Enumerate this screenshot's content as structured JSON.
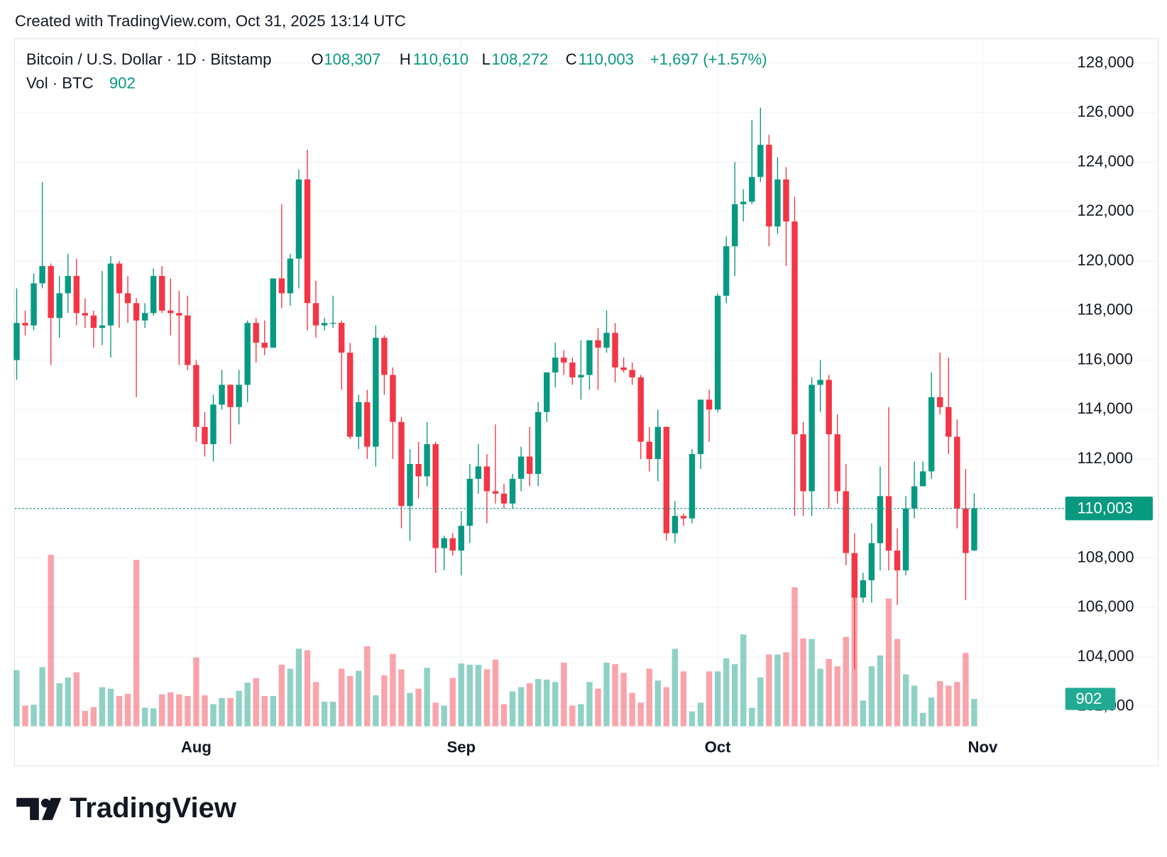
{
  "header": "Created with TradingView.com, Oct 31, 2025 13:14 UTC",
  "footer_logo": "TradingView",
  "chart_data": {
    "type": "candlestick",
    "title": "Bitcoin / U.S. Dollar · 1D · Bitstamp",
    "ohlc_legend": [
      {
        "key": "O",
        "text": "108,307"
      },
      {
        "key": "H",
        "text": "110,610"
      },
      {
        "key": "L",
        "text": "108,272"
      },
      {
        "key": "C",
        "text": "110,003"
      }
    ],
    "change": "+1,697 (+1.57%)",
    "volume_title": "Vol · BTC",
    "up_color": "#089981",
    "down_color": "#f23645",
    "grid": true,
    "xlim": [
      -0.2,
      122.3
    ],
    "xticks": [
      {
        "value": 21,
        "label": "Aug"
      },
      {
        "value": 52,
        "label": "Sep"
      },
      {
        "value": 82,
        "label": "Oct"
      },
      {
        "value": 113,
        "label": "Nov"
      }
    ],
    "ylim": [
      101200,
      129000
    ],
    "yticks": [
      {
        "value": 102000,
        "label": "102,000"
      },
      {
        "value": 104000,
        "label": "104,000"
      },
      {
        "value": 106000,
        "label": "106,000"
      },
      {
        "value": 108000,
        "label": "108,000"
      },
      {
        "value": 110000,
        "label": "110,000"
      },
      {
        "value": 112000,
        "label": "112,000"
      },
      {
        "value": 114000,
        "label": "114,000"
      },
      {
        "value": 116000,
        "label": "116,000"
      },
      {
        "value": 118000,
        "label": "118,000"
      },
      {
        "value": 120000,
        "label": "120,000"
      },
      {
        "value": 122000,
        "label": "122,000"
      },
      {
        "value": 124000,
        "label": "124,000"
      },
      {
        "value": 126000,
        "label": "126,000"
      },
      {
        "value": 128000,
        "label": "128,000"
      }
    ],
    "volume_ylim": [
      0,
      6000
    ],
    "last_price": {
      "value": 110003,
      "label": "110,003"
    },
    "open": [
      116000,
      117500,
      117400,
      119100,
      119800,
      117700,
      118700,
      119400,
      117900,
      117800,
      117300,
      117400,
      119900,
      118700,
      118300,
      117600,
      117900,
      119400,
      118000,
      117900,
      117800,
      115800,
      113300,
      112600,
      114200,
      115000,
      114100,
      115000,
      117500,
      116700,
      116500,
      119300,
      118700,
      120100,
      123300,
      118300,
      117400,
      117500,
      117500,
      116300,
      112900,
      114300,
      112500,
      116900,
      115400,
      113500,
      110100,
      111800,
      111300,
      112600,
      108400,
      108800,
      108300,
      109300,
      111200,
      111700,
      110700,
      110600,
      110200,
      111200,
      112100,
      111400,
      113900,
      115500,
      116100,
      115900,
      115300,
      115400,
      116800,
      116500,
      117100,
      115700,
      115600,
      115300,
      112700,
      112000,
      113300,
      109000,
      109700,
      109600,
      112200,
      114400,
      114000,
      118600,
      120600,
      122300,
      122400,
      123400,
      124700,
      121400,
      123300,
      121600,
      113000,
      110700,
      115000,
      115200,
      113000,
      110700,
      108200,
      106400,
      107100,
      108600,
      110500,
      108300,
      107500,
      110000,
      110900,
      111500,
      114500,
      114100,
      112900,
      110000,
      108307
    ],
    "high": [
      118900,
      118000,
      119500,
      123200,
      119900,
      119400,
      120300,
      120100,
      118500,
      118000,
      119600,
      120200,
      120000,
      119400,
      118500,
      118300,
      119700,
      119800,
      119300,
      118800,
      118600,
      116000,
      113900,
      114600,
      115600,
      115000,
      115600,
      117600,
      117700,
      117600,
      119300,
      122300,
      120300,
      123700,
      124500,
      119200,
      117700,
      118600,
      117600,
      116700,
      114600,
      114800,
      117400,
      117000,
      115700,
      113700,
      112400,
      112700,
      113500,
      112700,
      108900,
      109000,
      109900,
      111800,
      112600,
      112200,
      113400,
      111000,
      111400,
      112500,
      113300,
      114300,
      115500,
      116700,
      116400,
      116100,
      116800,
      116800,
      117300,
      118000,
      117500,
      116100,
      115900,
      115400,
      113300,
      114000,
      113300,
      110300,
      109800,
      112400,
      114400,
      114800,
      118700,
      121000,
      124000,
      122900,
      125700,
      126200,
      125100,
      124200,
      123800,
      122600,
      113500,
      115300,
      116000,
      115400,
      113800,
      111800,
      109000,
      107400,
      109400,
      111700,
      114100,
      109200,
      110500,
      111900,
      111900,
      115500,
      116300,
      116100,
      113600,
      111600,
      110610
    ],
    "low": [
      115200,
      117000,
      117200,
      118900,
      115800,
      116900,
      117900,
      117400,
      117300,
      116500,
      116600,
      116100,
      117300,
      117500,
      114500,
      117300,
      117800,
      117900,
      117000,
      115800,
      115600,
      112700,
      112100,
      111900,
      114000,
      112600,
      113400,
      114300,
      115900,
      116200,
      116500,
      118100,
      118200,
      118900,
      117200,
      116900,
      117200,
      117300,
      114800,
      112800,
      112400,
      112000,
      111700,
      114600,
      112000,
      109200,
      108700,
      110400,
      110900,
      107400,
      107500,
      108100,
      107300,
      108600,
      110600,
      109400,
      110200,
      110000,
      110000,
      110700,
      110900,
      110900,
      113500,
      114900,
      115400,
      115000,
      114400,
      114800,
      114800,
      116300,
      115100,
      115500,
      115000,
      112000,
      111500,
      111100,
      108700,
      108600,
      109300,
      109400,
      111600,
      112700,
      113900,
      118300,
      119400,
      121600,
      122300,
      123200,
      120600,
      121100,
      119800,
      109700,
      109700,
      109700,
      113900,
      110000,
      110200,
      107700,
      103500,
      106200,
      106200,
      107500,
      107500,
      106100,
      107300,
      109600,
      110900,
      111200,
      113800,
      112200,
      109200,
      106300,
      108272
    ],
    "close": [
      117500,
      117400,
      119100,
      119800,
      117700,
      118700,
      119400,
      117900,
      117800,
      117300,
      117400,
      119900,
      118700,
      118300,
      117600,
      117900,
      119400,
      118000,
      117900,
      117800,
      115800,
      113300,
      112600,
      114200,
      115000,
      114100,
      115000,
      117500,
      116700,
      116500,
      119300,
      118700,
      120100,
      123300,
      118300,
      117400,
      117500,
      117500,
      116300,
      112900,
      114300,
      112500,
      116900,
      115400,
      113500,
      110100,
      111800,
      111300,
      112600,
      108400,
      108800,
      108300,
      109300,
      111200,
      111700,
      110700,
      110600,
      110200,
      111200,
      112100,
      111400,
      113900,
      115500,
      116100,
      115900,
      115300,
      115400,
      116800,
      116500,
      117100,
      115700,
      115600,
      115300,
      112700,
      112000,
      113300,
      109000,
      109700,
      109600,
      112200,
      114400,
      114000,
      118600,
      120600,
      122300,
      122400,
      123400,
      124700,
      121400,
      123300,
      121600,
      113000,
      110700,
      115000,
      115200,
      113000,
      110700,
      108200,
      106400,
      107100,
      108600,
      110500,
      108300,
      107500,
      110000,
      110900,
      111500,
      114500,
      114100,
      112900,
      110000,
      108200,
      110003
    ],
    "volume": [
      1850,
      680,
      710,
      1950,
      5660,
      1420,
      1610,
      1780,
      510,
      630,
      1290,
      1240,
      1000,
      1070,
      5490,
      610,
      590,
      1050,
      1120,
      1050,
      1000,
      2270,
      1020,
      730,
      930,
      930,
      1170,
      1440,
      1590,
      1000,
      1000,
      2030,
      1900,
      2560,
      2510,
      1460,
      810,
      810,
      1900,
      1660,
      1830,
      2640,
      1020,
      1680,
      2390,
      1880,
      1100,
      1240,
      1930,
      780,
      680,
      1590,
      2070,
      2030,
      2030,
      1880,
      2200,
      730,
      1150,
      1290,
      1420,
      1560,
      1540,
      1460,
      2100,
      680,
      730,
      1460,
      1240,
      2100,
      2050,
      1760,
      1100,
      780,
      1900,
      1510,
      1290,
      2560,
      1810,
      490,
      780,
      1810,
      1810,
      2240,
      2050,
      3030,
      610,
      1610,
      2370,
      2370,
      2440,
      4590,
      2900,
      2880,
      1900,
      2220,
      1980,
      2950,
      4270,
      850,
      1980,
      2340,
      4220,
      2880,
      1710,
      1340,
      440,
      950,
      1490,
      1340,
      1460,
      2420,
      902
    ]
  }
}
